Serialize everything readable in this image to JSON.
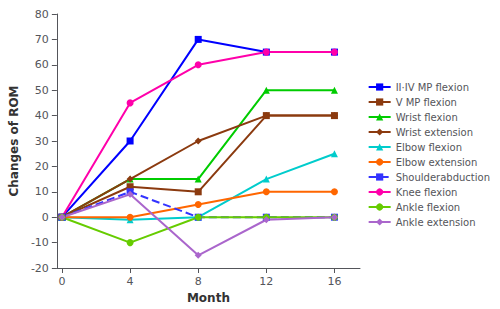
{
  "chart_data": {
    "type": "line",
    "x": [
      0,
      4,
      8,
      12,
      16
    ],
    "series": [
      {
        "name": "II·IV MP flexion",
        "color": "#0000FF",
        "marker": "square",
        "line_style": "solid",
        "values": [
          0,
          30,
          70,
          65,
          65
        ]
      },
      {
        "name": "V MP flexion",
        "color": "#8B3A0F",
        "marker": "square",
        "line_style": "solid",
        "values": [
          0,
          12,
          10,
          40,
          40
        ]
      },
      {
        "name": "Wrist flexion",
        "color": "#00CC00",
        "marker": "triangle",
        "line_style": "solid",
        "values": [
          0,
          15,
          15,
          50,
          50
        ]
      },
      {
        "name": "Wrist extension",
        "color": "#8B3A0F",
        "marker": "diamond",
        "line_style": "solid",
        "values": [
          0,
          15,
          30,
          40,
          40
        ]
      },
      {
        "name": "Elbow flexion",
        "color": "#00CCCC",
        "marker": "triangle",
        "line_style": "solid",
        "values": [
          0,
          -1,
          0,
          15,
          25
        ]
      },
      {
        "name": "Elbow extension",
        "color": "#FF6600",
        "marker": "circle",
        "line_style": "solid",
        "values": [
          0,
          0,
          5,
          10,
          10
        ]
      },
      {
        "name": "Shoulderabduction",
        "color": "#3333FF",
        "marker": "square",
        "line_style": "dashed",
        "values": [
          0,
          10,
          0,
          0,
          0
        ]
      },
      {
        "name": "Knee flexion",
        "color": "#FF00AA",
        "marker": "circle",
        "line_style": "solid",
        "values": [
          0,
          45,
          60,
          65,
          65
        ]
      },
      {
        "name": "Ankle flexion",
        "color": "#66CC00",
        "marker": "circle",
        "line_style": "solid",
        "values": [
          0,
          -10,
          0,
          0,
          0
        ]
      },
      {
        "name": "Ankle extension",
        "color": "#AA66CC",
        "marker": "diamond",
        "line_style": "solid",
        "values": [
          0,
          9,
          -15,
          -1,
          0
        ]
      }
    ],
    "xlabel": "Month",
    "ylabel": "Changes of ROM",
    "xlim": [
      -0.3,
      17.5
    ],
    "xticks": [
      0,
      4,
      8,
      12,
      16
    ],
    "ylim": [
      -20,
      80
    ],
    "yticks": [
      -20,
      -10,
      0,
      10,
      20,
      30,
      40,
      50,
      60,
      70,
      80
    ],
    "grid": false,
    "legend": "upper right"
  }
}
